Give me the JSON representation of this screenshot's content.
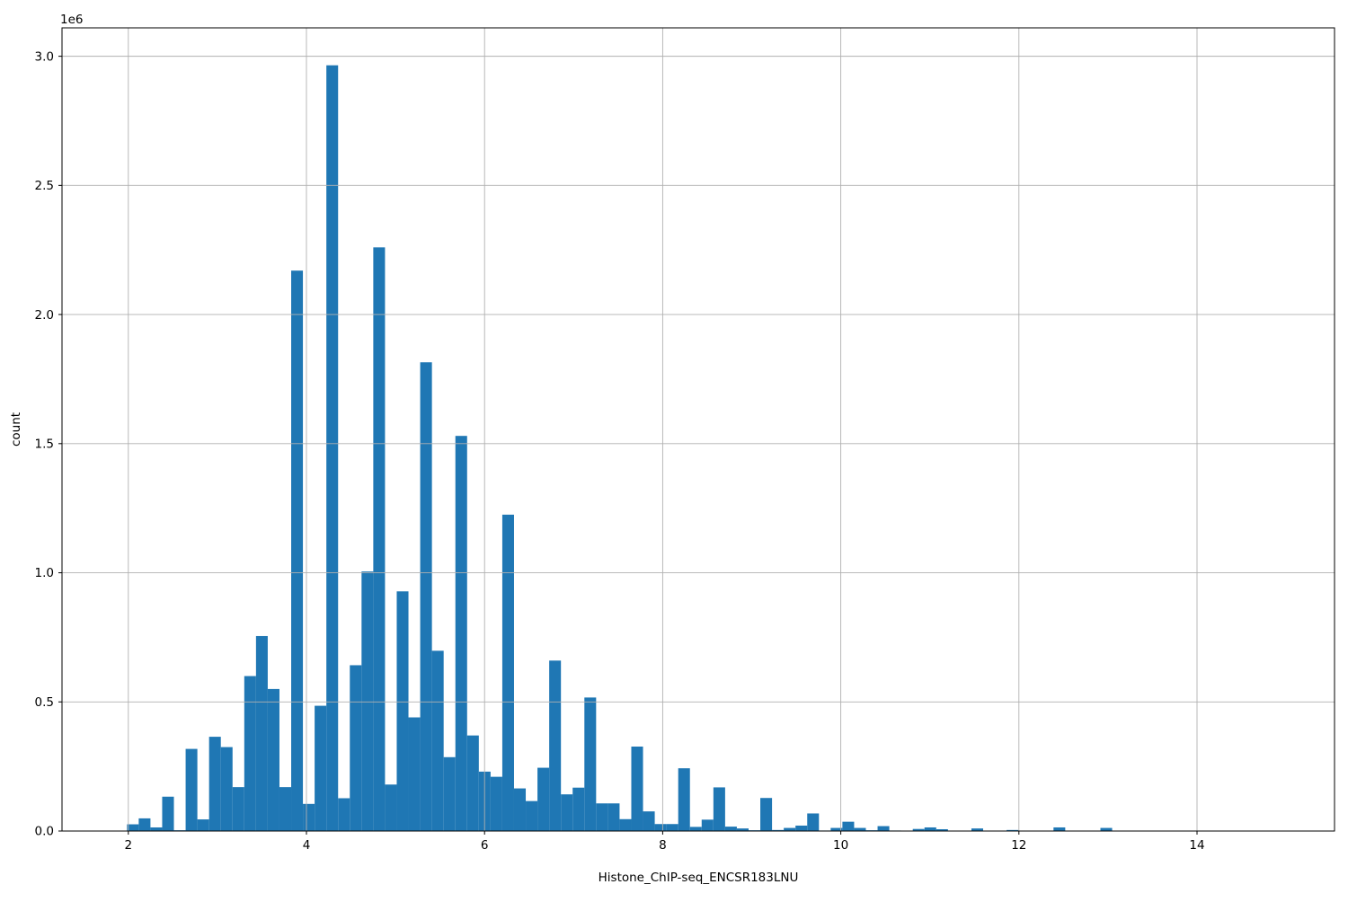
{
  "figure": {
    "background": "#ffffff"
  },
  "colors": {
    "bar": "#1f77b4",
    "grid": "#b0b0b0",
    "axis": "#000000",
    "text": "#000000"
  },
  "chart_data": {
    "type": "bar",
    "subtype": "histogram",
    "title": "",
    "xlabel": "Histone_ChIP-seq_ENCSR183LNU",
    "ylabel": "count",
    "y_offset_text": "1e6",
    "grid": true,
    "legend_position": "none",
    "xlim": [
      1.2553,
      15.5439
    ],
    "ylim": [
      0,
      3110000
    ],
    "x_ticks": [
      2,
      4,
      6,
      8,
      10,
      12,
      14
    ],
    "x_tick_labels": [
      "2",
      "4",
      "6",
      "8",
      "10",
      "12",
      "14"
    ],
    "y_ticks": [
      0,
      500000,
      1000000,
      1500000,
      2000000,
      2500000,
      3000000
    ],
    "y_tick_labels": [
      "0.0",
      "0.5",
      "1.0",
      "1.5",
      "2.0",
      "2.5",
      "3.0"
    ],
    "bin_start": 1.985,
    "bin_width": 0.13169,
    "counts": [
      26000,
      49000,
      14000,
      133000,
      3000,
      318000,
      45000,
      365000,
      325000,
      170000,
      600000,
      755000,
      550000,
      170000,
      2170000,
      105000,
      485000,
      2965000,
      127000,
      642000,
      1005000,
      2260000,
      180000,
      928000,
      440000,
      1815000,
      698000,
      286000,
      1530000,
      370000,
      230000,
      210000,
      1225000,
      165000,
      116000,
      245000,
      660000,
      142000,
      168000,
      517000,
      107000,
      107000,
      46000,
      327000,
      76000,
      27000,
      27000,
      243000,
      16000,
      44000,
      169000,
      17000,
      10000,
      3000,
      128000,
      4000,
      12000,
      21000,
      68000,
      2000,
      12000,
      36000,
      12000,
      3000,
      19000,
      2000,
      0,
      8000,
      14000,
      7000,
      0,
      0,
      10000,
      0,
      0,
      4000,
      0,
      0,
      0,
      14000,
      0,
      0,
      0,
      12000
    ]
  }
}
